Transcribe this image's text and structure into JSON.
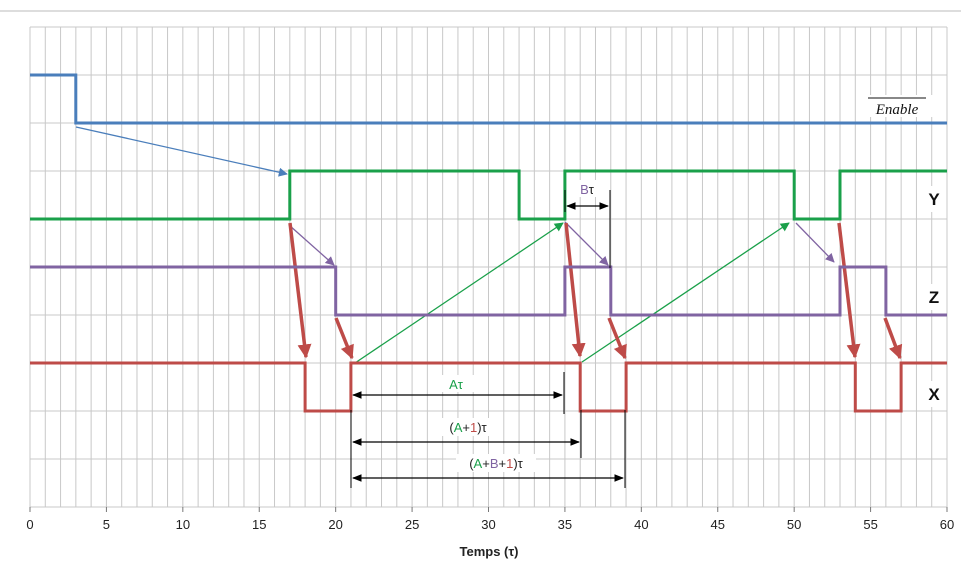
{
  "chart_data": {
    "type": "line",
    "xlabel": "Temps (τ)",
    "xlim": [
      0,
      60
    ],
    "x_ticks": [
      "0",
      "5",
      "10",
      "15",
      "20",
      "25",
      "30",
      "35",
      "40",
      "45",
      "50",
      "55",
      "60"
    ],
    "grid": true,
    "signals": [
      {
        "name": "Enable",
        "color": "#4a7ebb",
        "points": [
          [
            0,
            1
          ],
          [
            3,
            1
          ],
          [
            3,
            0
          ],
          [
            60,
            0
          ]
        ]
      },
      {
        "name": "Y",
        "color": "#1aa04a",
        "points": [
          [
            0,
            0
          ],
          [
            17,
            0
          ],
          [
            17,
            1
          ],
          [
            32,
            1
          ],
          [
            32,
            0
          ],
          [
            35,
            0
          ],
          [
            35,
            1
          ],
          [
            50,
            1
          ],
          [
            50,
            0
          ],
          [
            53,
            0
          ],
          [
            53,
            1
          ],
          [
            60,
            1
          ]
        ]
      },
      {
        "name": "Z",
        "color": "#8064a2",
        "points": [
          [
            0,
            1
          ],
          [
            20,
            1
          ],
          [
            20,
            0
          ],
          [
            35,
            0
          ],
          [
            35,
            1
          ],
          [
            38,
            1
          ],
          [
            38,
            0
          ],
          [
            53,
            0
          ],
          [
            53,
            1
          ],
          [
            56,
            1
          ],
          [
            56,
            0
          ],
          [
            60,
            0
          ]
        ]
      },
      {
        "name": "X",
        "color": "#be4b48",
        "points": [
          [
            0,
            1
          ],
          [
            18,
            1
          ],
          [
            18,
            0
          ],
          [
            21,
            0
          ],
          [
            21,
            1
          ],
          [
            36,
            1
          ],
          [
            36,
            0
          ],
          [
            39,
            0
          ],
          [
            39,
            1
          ],
          [
            54,
            1
          ],
          [
            54,
            0
          ],
          [
            57,
            0
          ],
          [
            57,
            1
          ],
          [
            60,
            1
          ]
        ]
      }
    ],
    "dimensions": [
      {
        "from": 35,
        "to": 38,
        "label": "Bτ"
      },
      {
        "from": 21,
        "to": 35,
        "label": "Aτ"
      },
      {
        "from": 21,
        "to": 36,
        "label": "(A+1)τ"
      },
      {
        "from": 21,
        "to": 39,
        "label": "(A+B+1)τ"
      }
    ]
  },
  "labels": {
    "enable": "Enable",
    "y": "Y",
    "z": "Z",
    "x": "X",
    "xlabel": "Temps (τ)",
    "b_tau": {
      "b": "B",
      "tau": "τ"
    },
    "a_tau": "Aτ",
    "a1_tau": {
      "open": "(",
      "a": "A",
      "plus": "+",
      "one": "1",
      "close": ")τ"
    },
    "ab1_tau": {
      "open": "(",
      "a": "A",
      "plus1": "+",
      "b": "B",
      "plus2": "+",
      "one": "1",
      "close": ")τ"
    }
  },
  "colors": {
    "enable": "#4a7ebb",
    "y": "#1aa04a",
    "z": "#8064a2",
    "x": "#be4b48",
    "grid": "#c8c8c8",
    "dimension": "#000000"
  }
}
